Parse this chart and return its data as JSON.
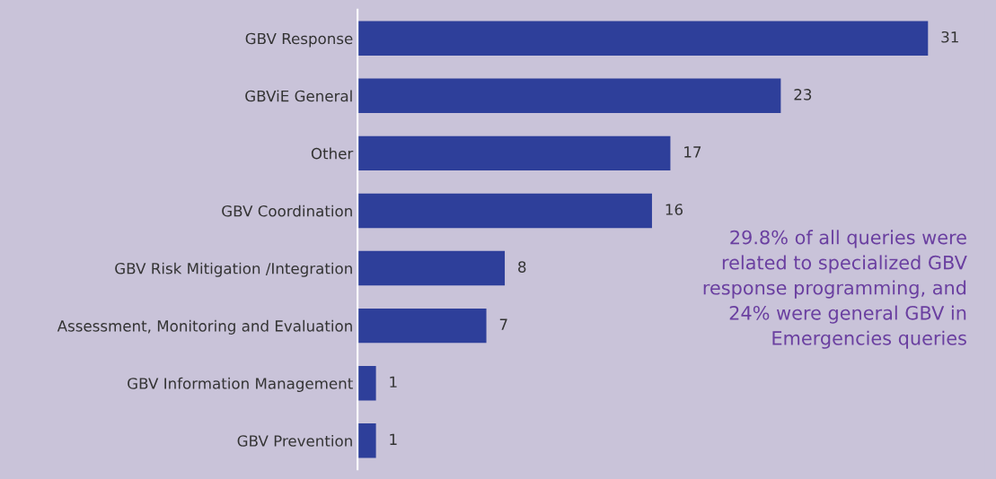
{
  "chart_data": {
    "type": "bar",
    "orientation": "horizontal",
    "categories": [
      "GBV Response",
      "GBViE General",
      "Other",
      "GBV Coordination",
      "GBV Risk Mitigation /Integration",
      "Assessment, Monitoring and Evaluation",
      "GBV Information Management",
      "GBV Prevention"
    ],
    "values": [
      31,
      23,
      17,
      16,
      8,
      7,
      1,
      1
    ],
    "color": "#2e3f9a",
    "data_labels": true,
    "tick_labels": "y",
    "grid": false,
    "legend": false,
    "annotations": [
      "29.8% of all queries were related to specialized GBV response programming, and 24% were general GBV in Emergencies queries"
    ]
  }
}
